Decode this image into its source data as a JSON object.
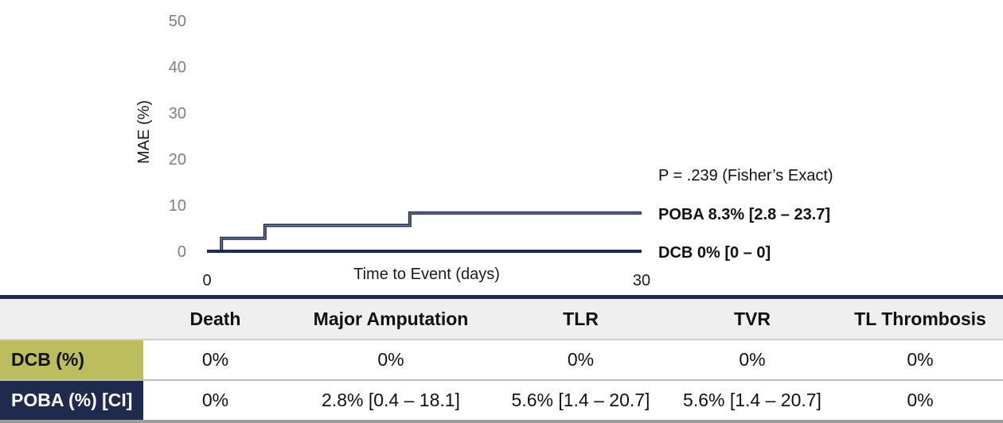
{
  "chart_data": {
    "type": "line",
    "xlabel": "Time to Event (days)",
    "ylabel": "MAE (%)",
    "xlim": [
      0,
      30
    ],
    "ylim": [
      0,
      50
    ],
    "x_ticks": [
      "0",
      "30"
    ],
    "y_ticks": [
      "0",
      "10",
      "20",
      "30",
      "40",
      "50"
    ],
    "annotation": "P = .239 (Fisher’s Exact)",
    "series": [
      {
        "name": "POBA 8.3% [2.8 – 23.7]",
        "step": true,
        "x": [
          0,
          1,
          1,
          4,
          4,
          14,
          14,
          30
        ],
        "y": [
          0,
          0,
          2.8,
          2.8,
          5.6,
          5.6,
          8.3,
          8.3
        ]
      },
      {
        "name": "DCB 0% [0 – 0]",
        "step": true,
        "x": [
          0,
          30
        ],
        "y": [
          0,
          0
        ]
      }
    ],
    "grid": false,
    "color": "#1e2b4d"
  },
  "table": {
    "columns": [
      "",
      "Death",
      "Major Amputation",
      "TLR",
      "TVR",
      "TL Thrombosis"
    ],
    "rows": [
      {
        "label": "DCB (%)",
        "cells": [
          "0%",
          "0%",
          "0%",
          "0%",
          "0%"
        ]
      },
      {
        "label": "POBA (%) [CI]",
        "cells": [
          "0%",
          "2.8% [0.4 – 18.1]",
          "5.6% [1.4 – 20.7]",
          "5.6% [1.4 – 20.7]",
          "0%"
        ]
      }
    ]
  },
  "colors": {
    "line": "#1e2b4d",
    "dcb_row": "#bcbd5f",
    "poba_row": "#1e2b4d",
    "header_bg": "#efefef"
  }
}
